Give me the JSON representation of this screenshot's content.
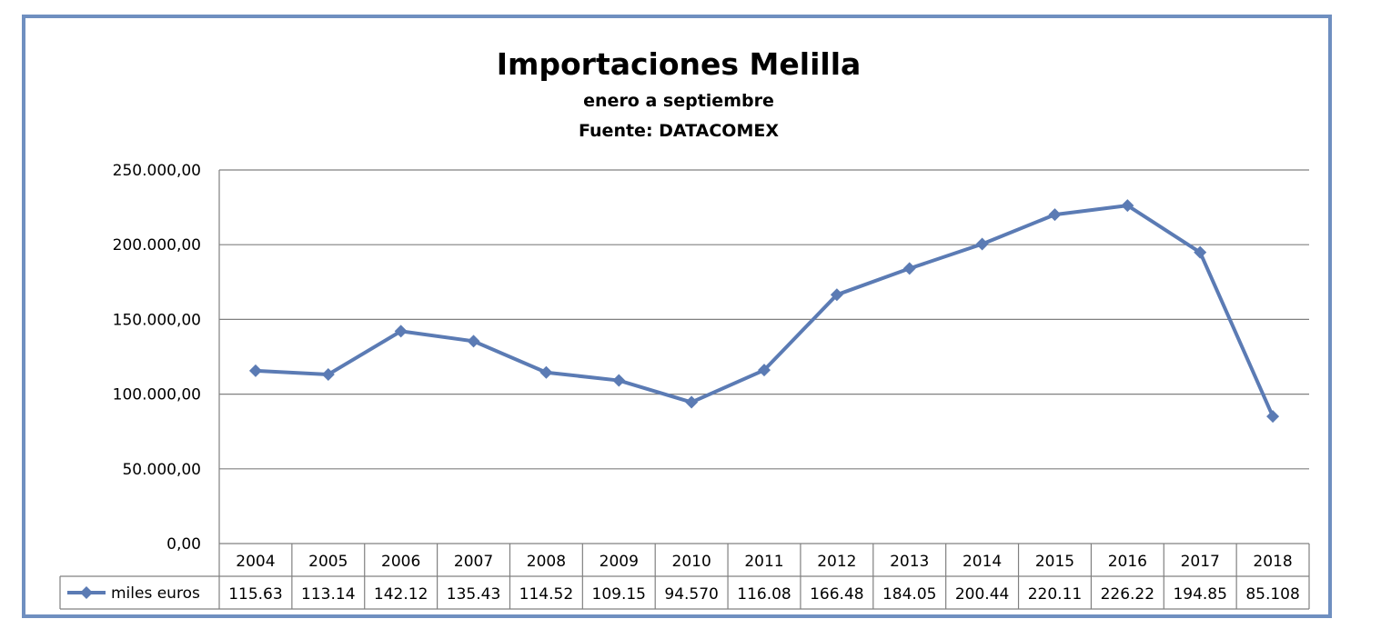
{
  "chart_data": {
    "type": "line",
    "title": "Importaciones Melilla",
    "subtitle_lines": [
      "enero a septiembre",
      "Fuente: DATACOMEX"
    ],
    "categories": [
      "2004",
      "2005",
      "2006",
      "2007",
      "2008",
      "2009",
      "2010",
      "2011",
      "2012",
      "2013",
      "2014",
      "2015",
      "2016",
      "2017",
      "2018"
    ],
    "series": [
      {
        "name": "miles euros",
        "values": [
          115630,
          113140,
          142120,
          135430,
          114520,
          109150,
          94570,
          116080,
          166480,
          184050,
          200440,
          220110,
          226220,
          194850,
          85108
        ],
        "table_labels": [
          "115.63",
          "113.14",
          "142.12",
          "135.43",
          "114.52",
          "109.15",
          "94.570",
          "116.08",
          "166.48",
          "184.05",
          "200.44",
          "220.11",
          "226.22",
          "194.85",
          "85.108"
        ],
        "color": "#5b7bb4"
      }
    ],
    "y_ticks": [
      "0,00",
      "50.000,00",
      "100.000,00",
      "150.000,00",
      "200.000,00",
      "250.000,00"
    ],
    "ylim": [
      0,
      250000
    ],
    "grid": true,
    "legend": "data-table"
  }
}
